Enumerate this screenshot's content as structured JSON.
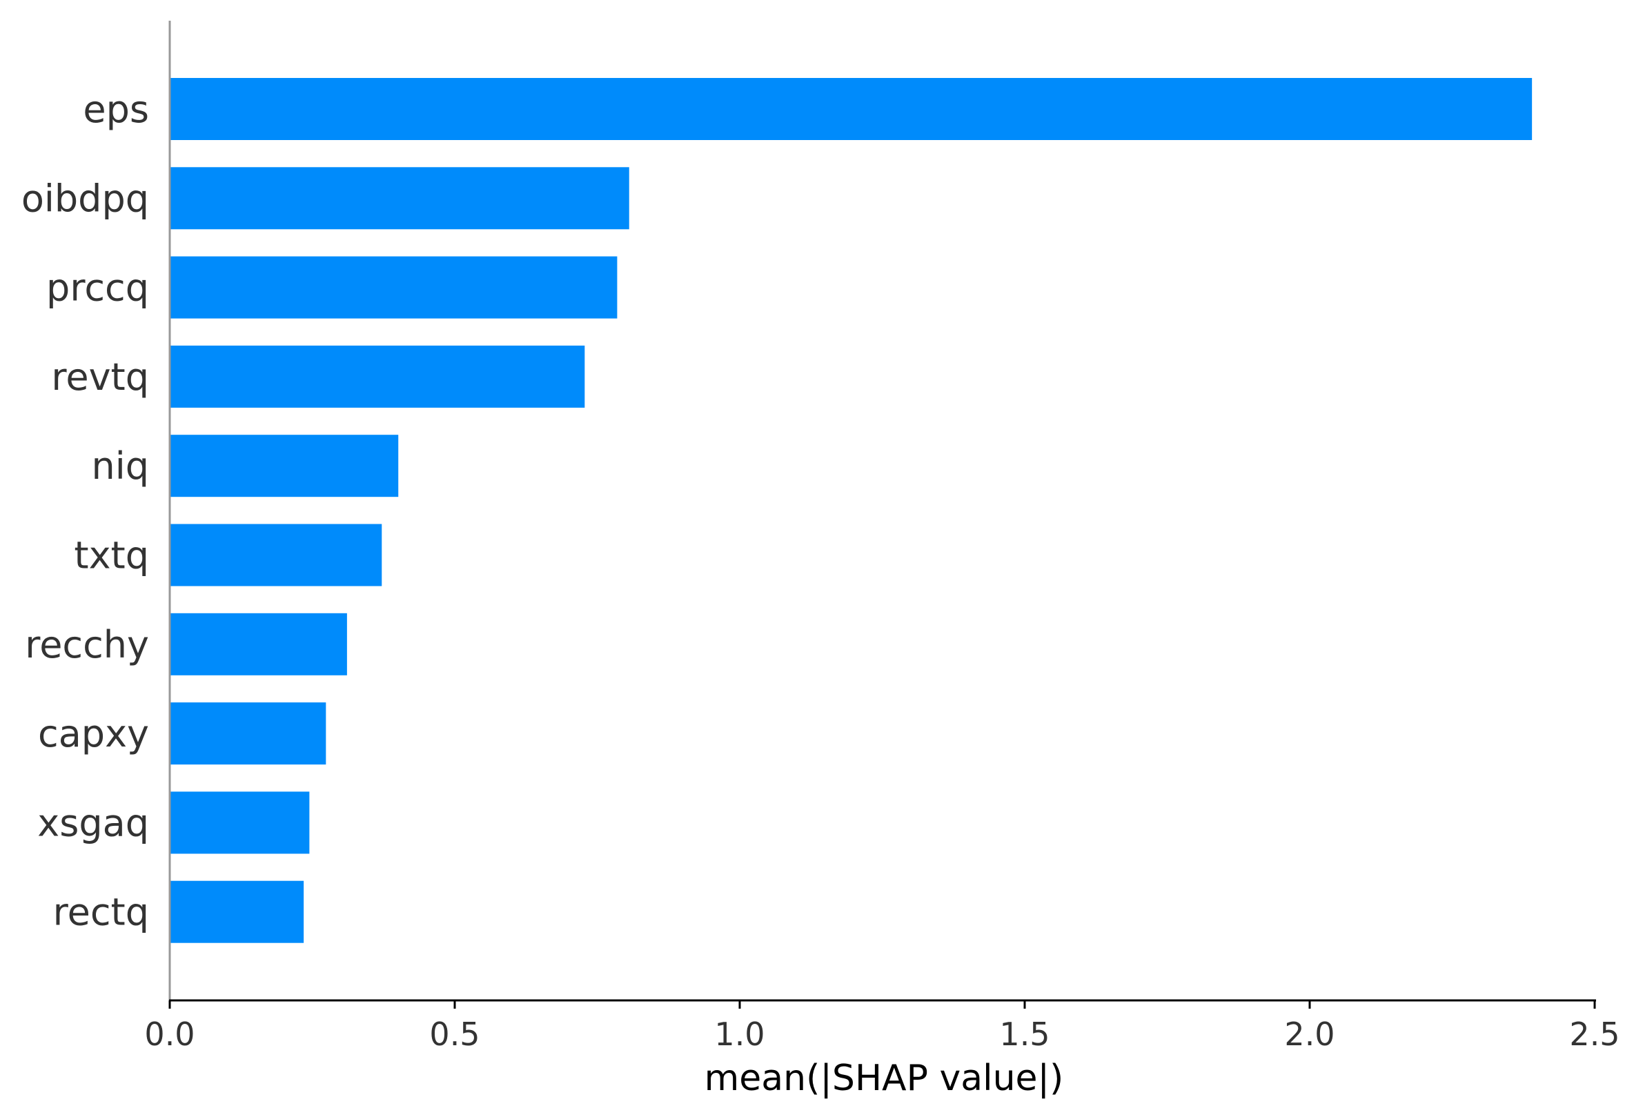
{
  "chart_data": {
    "type": "bar",
    "orientation": "horizontal",
    "categories": [
      "eps",
      "oibdpq",
      "prccq",
      "revtq",
      "niq",
      "txtq",
      "recchy",
      "capxy",
      "xsgaq",
      "rectq"
    ],
    "values": [
      2.39,
      0.806,
      0.785,
      0.728,
      0.401,
      0.372,
      0.311,
      0.274,
      0.245,
      0.235
    ],
    "xlabel": "mean(|SHAP value|)",
    "ylabel": "",
    "title": "",
    "xlim": [
      0,
      2.5
    ],
    "xticks": [
      0.0,
      0.5,
      1.0,
      1.5,
      2.0,
      2.5
    ],
    "xtick_labels": [
      "0.0",
      "0.5",
      "1.0",
      "1.5",
      "2.0",
      "2.5"
    ],
    "bar_color": "#008bfb",
    "grid": false,
    "legend": "none"
  }
}
